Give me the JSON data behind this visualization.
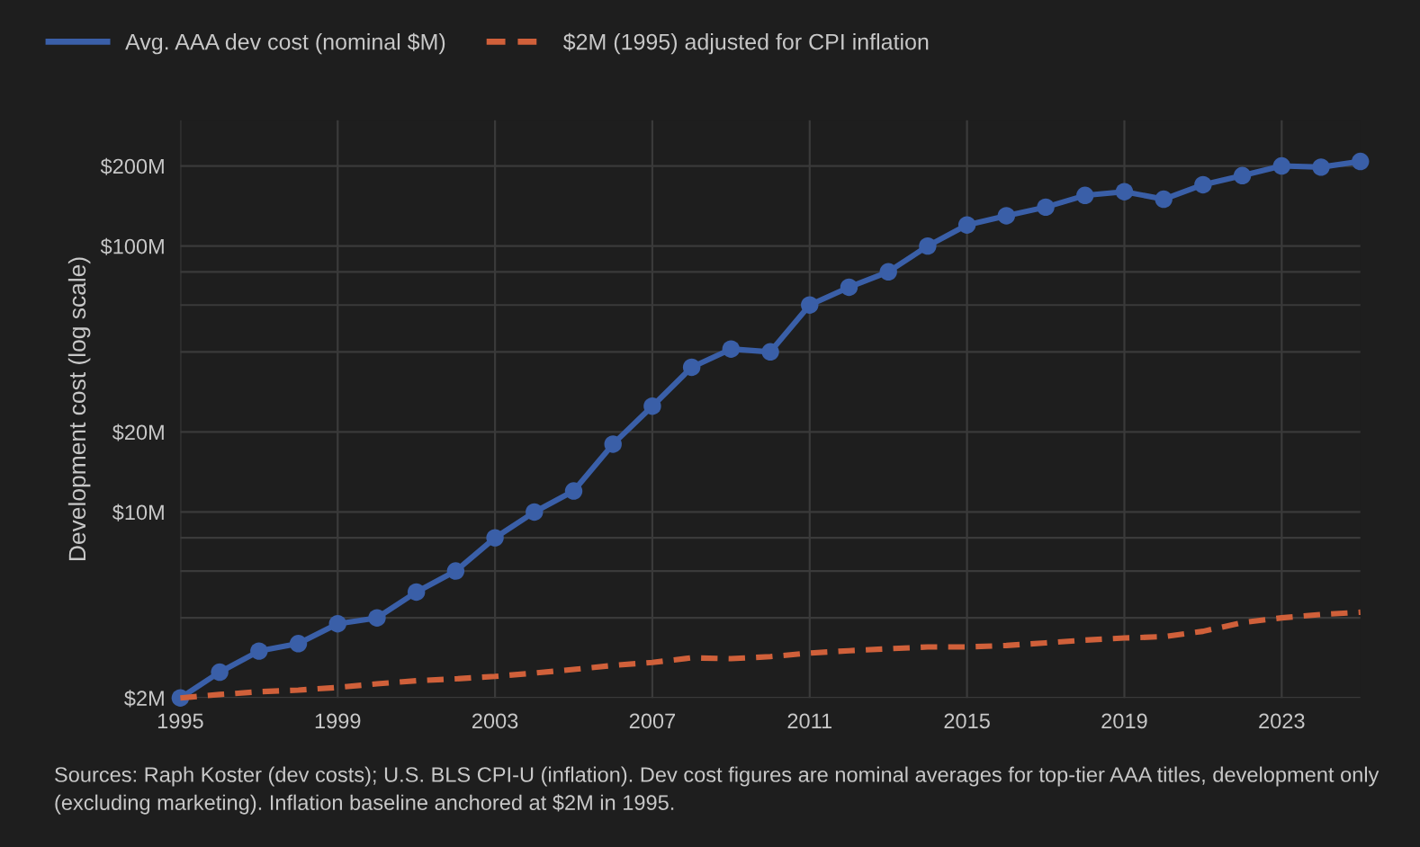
{
  "chart_data": {
    "type": "line",
    "ylabel": "Development cost (log scale)",
    "log": true,
    "grid": true,
    "legend": "top left",
    "x": [
      1995,
      1996,
      1997,
      1998,
      1999,
      2000,
      2001,
      2002,
      2003,
      2004,
      2005,
      2006,
      2007,
      2008,
      2009,
      2010,
      2011,
      2012,
      2013,
      2014,
      2015,
      2016,
      2017,
      2018,
      2019,
      2020,
      2021,
      2022,
      2023,
      2024,
      2025
    ],
    "series": [
      {
        "name": "Avg. AAA dev cost (nominal $M)",
        "color": "#3a5fa8",
        "marker": "circle",
        "line_style": "solid",
        "values": [
          2,
          2.5,
          3,
          3.2,
          3.8,
          4,
          5,
          6,
          8,
          10,
          12,
          18,
          25,
          35,
          41,
          40,
          60,
          70,
          80,
          100,
          120,
          130,
          140,
          155,
          160,
          150,
          170,
          184,
          200,
          198,
          208
        ]
      },
      {
        "name": "$2M (1995) adjusted for CPI inflation",
        "type": "line",
        "color": "#d0603a",
        "marker": "none",
        "line_style": "dashed",
        "values": [
          2.0,
          2.06,
          2.11,
          2.14,
          2.19,
          2.26,
          2.32,
          2.36,
          2.41,
          2.48,
          2.56,
          2.65,
          2.72,
          2.83,
          2.81,
          2.86,
          2.95,
          3.01,
          3.06,
          3.11,
          3.11,
          3.15,
          3.22,
          3.3,
          3.36,
          3.4,
          3.56,
          3.84,
          4.0,
          4.12,
          4.2
        ]
      }
    ],
    "xlim": [
      1995,
      2025
    ],
    "xticks": [
      1995,
      1999,
      2003,
      2007,
      2011,
      2015,
      2019,
      2023
    ],
    "ylim": [
      2,
      297
    ],
    "yticks": [
      {
        "value": 2,
        "label": "$2M"
      },
      {
        "value": 4,
        "label": null
      },
      {
        "value": 6,
        "label": null
      },
      {
        "value": 8,
        "label": null
      },
      {
        "value": 10,
        "label": "$10M"
      },
      {
        "value": 20,
        "label": "$20M"
      },
      {
        "value": 40,
        "label": null
      },
      {
        "value": 60,
        "label": null
      },
      {
        "value": 80,
        "label": null
      },
      {
        "value": 100,
        "label": "$100M"
      },
      {
        "value": 200,
        "label": "$200M"
      }
    ],
    "annotations": [
      "Sources: Raph Koster (dev costs); U.S. BLS CPI-U (inflation). Dev cost figures are nominal averages for top-tier AAA titles, development only (excluding marketing). Inflation baseline anchored at $2M in 1995."
    ]
  }
}
